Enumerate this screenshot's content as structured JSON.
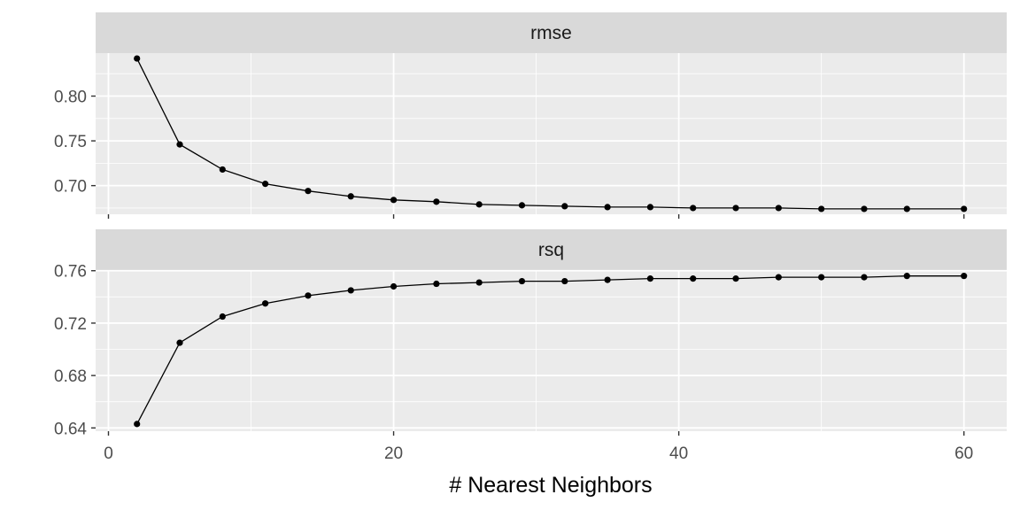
{
  "chart_data": {
    "type": "line",
    "xlabel": "# Nearest Neighbors",
    "xlim": [
      -0.9,
      63
    ],
    "x_ticks": [
      0,
      20,
      40,
      60
    ],
    "x_tick_labels": [
      "0",
      "20",
      "40",
      "60"
    ],
    "x": [
      2,
      5,
      8,
      11,
      14,
      17,
      20,
      23,
      26,
      29,
      32,
      35,
      38,
      41,
      44,
      47,
      50,
      53,
      56,
      60
    ],
    "panels": [
      {
        "strip": "rmse",
        "ylim": [
          0.668,
          0.848
        ],
        "y_ticks": [
          0.7,
          0.75,
          0.8
        ],
        "y_tick_labels": [
          "0.70",
          "0.75",
          "0.80"
        ],
        "values": [
          0.842,
          0.746,
          0.718,
          0.702,
          0.694,
          0.688,
          0.684,
          0.682,
          0.679,
          0.678,
          0.677,
          0.676,
          0.676,
          0.675,
          0.675,
          0.675,
          0.674,
          0.674,
          0.674,
          0.674
        ]
      },
      {
        "strip": "rsq",
        "ylim": [
          0.6375,
          0.7605
        ],
        "y_ticks": [
          0.64,
          0.68,
          0.72,
          0.76
        ],
        "y_tick_labels": [
          "0.64",
          "0.68",
          "0.72",
          "0.76"
        ],
        "values": [
          0.643,
          0.705,
          0.725,
          0.735,
          0.741,
          0.745,
          0.748,
          0.75,
          0.751,
          0.752,
          0.752,
          0.753,
          0.754,
          0.754,
          0.754,
          0.755,
          0.755,
          0.755,
          0.756,
          0.756
        ]
      }
    ],
    "colors": {
      "panel_bg": "#ebebeb",
      "strip_bg": "#d9d9d9",
      "grid": "#ffffff",
      "line": "#000000",
      "point": "#000000",
      "tick": "#333333"
    }
  }
}
